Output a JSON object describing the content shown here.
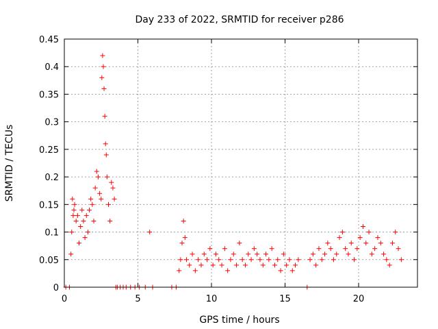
{
  "chart_data": {
    "type": "scatter",
    "title": "Day 233 of 2022, SRMTID for receiver p286",
    "xlabel": "GPS time / hours",
    "ylabel": "SRMTID / TECUs",
    "xlim": [
      0,
      24
    ],
    "ylim": [
      0,
      0.45
    ],
    "xticks": [
      0,
      5,
      10,
      15,
      20
    ],
    "yticks": [
      0,
      0.05,
      0.1,
      0.15,
      0.2,
      0.25,
      0.3,
      0.35,
      0.4,
      0.45
    ],
    "grid": true,
    "marker": "+",
    "color": "#ff0000",
    "series": [
      {
        "name": "SRMTID p286",
        "x": [
          0.1,
          0.35,
          0.45,
          0.5,
          0.55,
          0.6,
          0.65,
          0.7,
          0.8,
          0.9,
          1.0,
          1.1,
          1.2,
          1.3,
          1.4,
          1.5,
          1.6,
          1.7,
          1.8,
          1.9,
          2.0,
          2.1,
          2.2,
          2.3,
          2.4,
          2.5,
          2.55,
          2.6,
          2.65,
          2.7,
          2.75,
          2.8,
          2.85,
          2.9,
          3.0,
          3.1,
          3.2,
          3.3,
          3.4,
          3.5,
          3.6,
          3.8,
          4.0,
          4.2,
          4.5,
          4.8,
          5.1,
          5.5,
          5.8,
          6.0,
          7.3,
          7.6,
          7.8,
          7.9,
          8.0,
          8.1,
          8.2,
          8.3,
          8.5,
          8.7,
          8.9,
          9.1,
          9.3,
          9.5,
          9.7,
          9.9,
          10.1,
          10.3,
          10.5,
          10.7,
          10.9,
          11.1,
          11.3,
          11.5,
          11.7,
          11.9,
          12.1,
          12.3,
          12.5,
          12.7,
          12.9,
          13.1,
          13.3,
          13.5,
          13.7,
          13.9,
          14.1,
          14.3,
          14.5,
          14.7,
          14.9,
          15.1,
          15.3,
          15.5,
          15.7,
          15.9,
          16.5,
          16.7,
          16.9,
          17.1,
          17.3,
          17.5,
          17.7,
          17.9,
          18.1,
          18.3,
          18.5,
          18.7,
          18.9,
          19.1,
          19.3,
          19.5,
          19.7,
          19.9,
          20.1,
          20.3,
          20.5,
          20.7,
          20.9,
          21.1,
          21.3,
          21.5,
          21.7,
          21.9,
          22.1,
          22.3,
          22.5,
          22.7,
          22.9
        ],
        "y": [
          0.0,
          0.0,
          0.06,
          0.1,
          0.16,
          0.13,
          0.14,
          0.15,
          0.12,
          0.13,
          0.08,
          0.11,
          0.14,
          0.12,
          0.09,
          0.13,
          0.1,
          0.14,
          0.16,
          0.15,
          0.12,
          0.18,
          0.21,
          0.2,
          0.17,
          0.16,
          0.38,
          0.42,
          0.4,
          0.36,
          0.31,
          0.26,
          0.24,
          0.2,
          0.15,
          0.12,
          0.19,
          0.18,
          0.16,
          0.0,
          0.0,
          0.0,
          0.0,
          0.0,
          0.0,
          0.0,
          0.0,
          0.0,
          0.1,
          0.0,
          0.0,
          0.0,
          0.03,
          0.05,
          0.08,
          0.12,
          0.09,
          0.05,
          0.04,
          0.06,
          0.03,
          0.05,
          0.04,
          0.06,
          0.05,
          0.07,
          0.04,
          0.06,
          0.05,
          0.04,
          0.07,
          0.03,
          0.05,
          0.06,
          0.04,
          0.08,
          0.05,
          0.04,
          0.06,
          0.05,
          0.07,
          0.06,
          0.05,
          0.04,
          0.06,
          0.05,
          0.07,
          0.04,
          0.05,
          0.03,
          0.06,
          0.04,
          0.05,
          0.03,
          0.04,
          0.05,
          0.0,
          0.05,
          0.06,
          0.04,
          0.07,
          0.05,
          0.06,
          0.08,
          0.07,
          0.05,
          0.06,
          0.09,
          0.1,
          0.07,
          0.06,
          0.08,
          0.05,
          0.07,
          0.09,
          0.11,
          0.08,
          0.1,
          0.06,
          0.07,
          0.09,
          0.08,
          0.06,
          0.05,
          0.04,
          0.08,
          0.1,
          0.07,
          0.05
        ]
      }
    ]
  }
}
